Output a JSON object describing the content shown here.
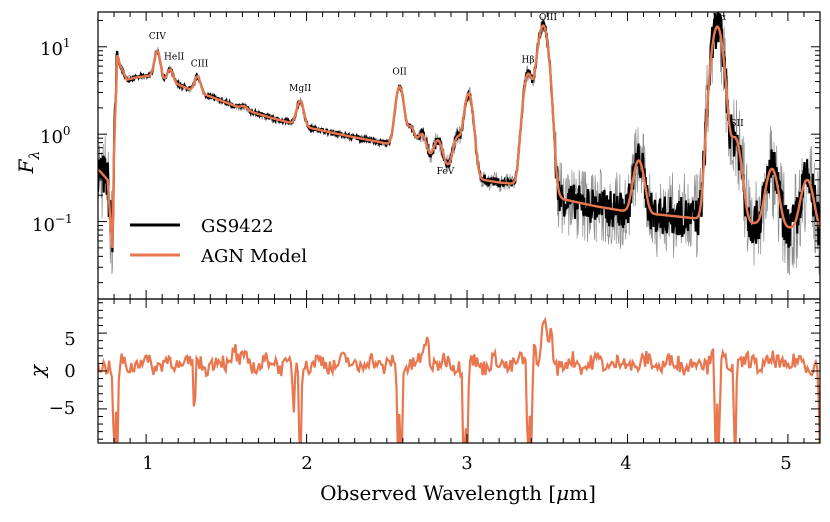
{
  "chart_data": [
    {
      "type": "line",
      "panel": "top",
      "ylabel": "F_λ",
      "yscale": "log",
      "xlim": [
        0.7,
        5.2
      ],
      "ylim": [
        0.013,
        25
      ],
      "yticks": [
        {
          "value": 0.1,
          "label": "10",
          "exp": "−1"
        },
        {
          "value": 1,
          "label": "10",
          "exp": "0"
        },
        {
          "value": 10,
          "label": "10",
          "exp": "1"
        }
      ],
      "legend": {
        "position": "lower-left",
        "entries": [
          {
            "label": "GS9422",
            "color": "#000000"
          },
          {
            "label": "AGN Model",
            "color": "#e8774f"
          }
        ]
      },
      "continuum": [
        [
          0.7,
          0.4
        ],
        [
          0.76,
          0.3
        ],
        [
          0.79,
          0.05
        ],
        [
          0.8,
          0.6
        ],
        [
          0.82,
          8.0
        ],
        [
          0.84,
          6.0
        ],
        [
          0.88,
          4.2
        ],
        [
          0.95,
          4.5
        ],
        [
          1.0,
          4.6
        ],
        [
          1.05,
          4.7
        ],
        [
          1.1,
          4.2
        ],
        [
          1.2,
          3.7
        ],
        [
          1.3,
          3.1
        ],
        [
          1.4,
          2.7
        ],
        [
          1.5,
          2.3
        ],
        [
          1.6,
          1.95
        ],
        [
          1.7,
          1.7
        ],
        [
          1.8,
          1.5
        ],
        [
          1.9,
          1.35
        ],
        [
          2.0,
          1.2
        ],
        [
          2.1,
          1.1
        ],
        [
          2.2,
          1.0
        ],
        [
          2.3,
          0.92
        ],
        [
          2.4,
          0.85
        ],
        [
          2.5,
          0.78
        ],
        [
          2.6,
          0.72
        ],
        [
          2.7,
          0.62
        ],
        [
          2.8,
          0.5
        ],
        [
          2.9,
          0.4
        ],
        [
          3.0,
          0.33
        ],
        [
          3.1,
          0.3
        ],
        [
          3.2,
          0.28
        ],
        [
          3.3,
          0.27
        ],
        [
          3.4,
          0.3
        ],
        [
          3.45,
          0.6
        ],
        [
          3.5,
          0.4
        ],
        [
          3.55,
          0.21
        ],
        [
          3.6,
          0.18
        ],
        [
          3.8,
          0.15
        ],
        [
          4.0,
          0.13
        ],
        [
          4.2,
          0.12
        ],
        [
          4.4,
          0.11
        ],
        [
          4.6,
          0.1
        ],
        [
          4.8,
          0.095
        ],
        [
          5.0,
          0.085
        ],
        [
          5.2,
          0.075
        ]
      ],
      "emission_lines": [
        {
          "label": "CIV",
          "x": 1.07,
          "peak": 9.0
        },
        {
          "label": "HeII",
          "x": 1.15,
          "peak": 5.5
        },
        {
          "label": "CIII",
          "x": 1.32,
          "peak": 4.6
        },
        {
          "label": "MgII",
          "x": 1.96,
          "peak": 2.4
        },
        {
          "label": "OII",
          "x": 2.58,
          "peak": 3.5
        },
        {
          "label": "FeV",
          "x": 2.94,
          "peak": 0.9
        },
        {
          "label": "Hβ",
          "x": 3.38,
          "peak": 4.8
        },
        {
          "label": "OIII",
          "x": 3.48,
          "peak": 15.0
        },
        {
          "label": "Hα",
          "x": 4.56,
          "peak": 17.0
        },
        {
          "label": "SII",
          "x": 4.67,
          "peak": 0.9
        }
      ],
      "unlabeled_features": [
        {
          "x": 1.61,
          "peak": 2.1
        },
        {
          "x": 2.65,
          "peak": 1.2
        },
        {
          "x": 2.72,
          "peak": 1.0
        },
        {
          "x": 2.82,
          "peak": 0.85
        },
        {
          "x": 3.01,
          "peak": 2.9
        },
        {
          "x": 3.45,
          "peak": 5.0
        },
        {
          "x": 4.07,
          "peak": 0.5
        },
        {
          "x": 4.9,
          "peak": 0.4
        },
        {
          "x": 5.12,
          "peak": 0.3
        }
      ]
    },
    {
      "type": "line",
      "panel": "bottom",
      "ylabel": "χ",
      "xlabel": "Observed Wavelength [μm]",
      "xlim": [
        0.7,
        5.2
      ],
      "ylim": [
        -9.5,
        9.5
      ],
      "xticks": [
        1,
        2,
        3,
        4,
        5
      ],
      "yticks": [
        -5,
        0,
        5
      ],
      "residual_color": "#e8774f",
      "dips": [
        {
          "x": 0.8,
          "value": -12
        },
        {
          "x": 0.82,
          "value": -12
        },
        {
          "x": 1.3,
          "value": -5.5
        },
        {
          "x": 1.92,
          "value": -6
        },
        {
          "x": 1.96,
          "value": -12
        },
        {
          "x": 2.57,
          "value": -12
        },
        {
          "x": 2.59,
          "value": -12
        },
        {
          "x": 2.98,
          "value": -12
        },
        {
          "x": 3.0,
          "value": -12
        },
        {
          "x": 3.38,
          "value": -12
        },
        {
          "x": 3.4,
          "value": -12
        },
        {
          "x": 4.55,
          "value": -12
        },
        {
          "x": 4.57,
          "value": -12
        },
        {
          "x": 4.67,
          "value": -12
        },
        {
          "x": 5.2,
          "value": -12
        }
      ],
      "peaks": [
        {
          "x": 1.55,
          "value": 3.5
        },
        {
          "x": 2.75,
          "value": 4.5
        },
        {
          "x": 3.42,
          "value": 4.0
        },
        {
          "x": 3.48,
          "value": 7.0
        },
        {
          "x": 3.52,
          "value": 5.0
        },
        {
          "x": 4.53,
          "value": 4.0
        }
      ]
    }
  ],
  "tick_labels_x": [
    "1",
    "2",
    "3",
    "4",
    "5"
  ],
  "tick_labels_chi": [
    "5",
    "0",
    "−5"
  ],
  "ylabel_top_main": "F",
  "ylabel_top_sub": "λ",
  "ylabel_bottom": "χ",
  "xlabel_prefix": "Observed Wavelength [",
  "xlabel_mu": "μ",
  "xlabel_suffix": "m]",
  "legend_data_label": "GS9422",
  "legend_model_label": "AGN Model"
}
